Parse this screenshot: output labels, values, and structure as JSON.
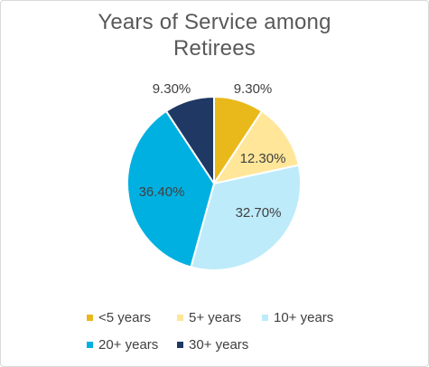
{
  "chart_data": {
    "type": "pie",
    "title": "Years of Service among Retirees",
    "title_lines": [
      "Years of Service among",
      "Retirees"
    ],
    "unit": "%",
    "legend_position": "bottom",
    "slices": [
      {
        "label": "<5 years",
        "value": 9.3,
        "value_label": "9.30%",
        "color": "#E9B81A"
      },
      {
        "label": "5+ years",
        "value": 12.3,
        "value_label": "12.30%",
        "color": "#FFE699"
      },
      {
        "label": "10+ years",
        "value": 32.7,
        "value_label": "32.70%",
        "color": "#BDEBFA"
      },
      {
        "label": "20+ years",
        "value": 36.4,
        "value_label": "36.40%",
        "color": "#00B0E0"
      },
      {
        "label": "30+ years",
        "value": 9.3,
        "value_label": "9.30%",
        "color": "#1F3864"
      }
    ]
  }
}
